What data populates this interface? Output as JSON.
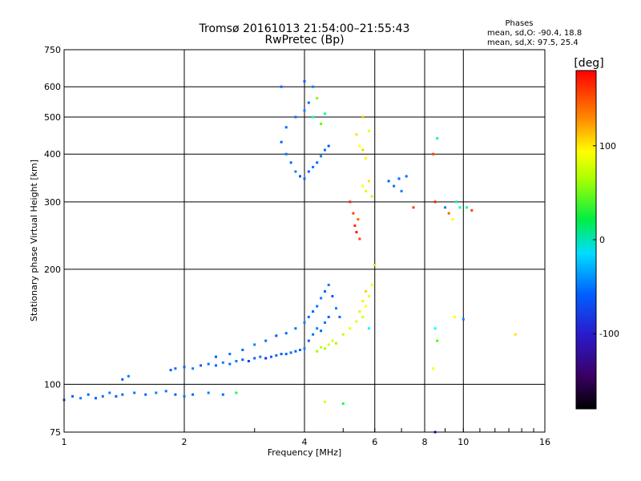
{
  "chart_data": {
    "type": "scatter",
    "title": "Tromsø 20161013 21:54:00–21:55:43",
    "subtitle": "RwPretec (Bp)",
    "xlabel": "Frequency [MHz]",
    "ylabel": "Stationary phase Virtual Height [km]",
    "xscale": "log2",
    "yscale": "log",
    "xlim": [
      1,
      16
    ],
    "ylim": [
      75,
      750
    ],
    "xticks": [
      1,
      2,
      4,
      6,
      8,
      10,
      16
    ],
    "yticks": [
      75,
      100,
      200,
      300,
      400,
      500,
      600,
      750
    ],
    "grid": true,
    "stats": {
      "heading": "Phases",
      "o_line": "mean, sd,O: -90.4, 18.8",
      "x_line": "mean, sd,X:  97.5, 25.4"
    },
    "colorbar": {
      "label": "[deg]",
      "range": [
        -180,
        180
      ],
      "ticks": [
        100,
        0,
        -100
      ],
      "colormap": "rainbow"
    },
    "series": [
      {
        "points": [
          [
            1.0,
            91,
            -105
          ],
          [
            1.05,
            93,
            -110
          ],
          [
            1.1,
            92,
            -100
          ],
          [
            1.15,
            94,
            -108
          ],
          [
            1.2,
            92,
            -112
          ],
          [
            1.25,
            93,
            -104
          ],
          [
            1.3,
            95,
            -100
          ],
          [
            1.35,
            93,
            -110
          ],
          [
            1.4,
            94,
            -106
          ],
          [
            1.5,
            95,
            -102
          ],
          [
            1.6,
            94,
            -108
          ],
          [
            1.7,
            95,
            -100
          ],
          [
            1.8,
            96,
            -104
          ],
          [
            1.9,
            94,
            -110
          ],
          [
            2.0,
            93,
            -102
          ],
          [
            2.1,
            94,
            -108
          ],
          [
            2.3,
            95,
            -100
          ],
          [
            2.5,
            94,
            -106
          ],
          [
            2.7,
            95,
            -10
          ],
          [
            1.45,
            105,
            -100
          ],
          [
            1.4,
            103,
            -110
          ],
          [
            1.85,
            109,
            -110
          ],
          [
            1.9,
            110,
            -105
          ],
          [
            2.0,
            111,
            -108
          ],
          [
            2.1,
            110,
            -100
          ],
          [
            2.2,
            112,
            -112
          ],
          [
            2.3,
            113,
            -104
          ],
          [
            2.4,
            112,
            -108
          ],
          [
            2.5,
            114,
            -100
          ],
          [
            2.6,
            113,
            -106
          ],
          [
            2.7,
            115,
            -102
          ],
          [
            2.8,
            116,
            -110
          ],
          [
            2.9,
            115,
            -120
          ],
          [
            3.0,
            117,
            -110
          ],
          [
            3.1,
            118,
            -104
          ],
          [
            3.2,
            117,
            -125
          ],
          [
            3.3,
            118,
            -110
          ],
          [
            3.4,
            119,
            -106
          ],
          [
            3.5,
            120,
            -112
          ],
          [
            3.6,
            120,
            -108
          ],
          [
            3.7,
            121,
            -104
          ],
          [
            3.8,
            122,
            -110
          ],
          [
            3.9,
            123,
            -106
          ],
          [
            4.0,
            124,
            -100
          ],
          [
            2.4,
            118,
            -110
          ],
          [
            2.6,
            120,
            -104
          ],
          [
            2.8,
            123,
            -108
          ],
          [
            3.0,
            127,
            -100
          ],
          [
            3.2,
            130,
            -106
          ],
          [
            3.4,
            134,
            -112
          ],
          [
            3.6,
            136,
            -108
          ],
          [
            3.8,
            140,
            -104
          ],
          [
            4.0,
            145,
            -100
          ],
          [
            4.1,
            150,
            -106
          ],
          [
            4.2,
            155,
            -110
          ],
          [
            4.3,
            160,
            -104
          ],
          [
            4.4,
            168,
            -100
          ],
          [
            4.5,
            175,
            -108
          ],
          [
            4.6,
            182,
            -104
          ],
          [
            4.7,
            170,
            -112
          ],
          [
            4.8,
            158,
            -100
          ],
          [
            4.9,
            150,
            -106
          ],
          [
            4.1,
            130,
            -110
          ],
          [
            4.2,
            135,
            -104
          ],
          [
            4.3,
            140,
            -100
          ],
          [
            4.4,
            138,
            -108
          ],
          [
            4.5,
            145,
            -104
          ],
          [
            4.6,
            150,
            -110
          ],
          [
            4.3,
            122,
            70
          ],
          [
            4.4,
            125,
            80
          ],
          [
            4.5,
            124,
            75
          ],
          [
            4.6,
            127,
            85
          ],
          [
            4.7,
            130,
            90
          ],
          [
            4.8,
            128,
            70
          ],
          [
            5.0,
            135,
            80
          ],
          [
            5.2,
            140,
            95
          ],
          [
            5.4,
            146,
            90
          ],
          [
            5.6,
            150,
            85
          ],
          [
            5.7,
            160,
            100
          ],
          [
            5.8,
            170,
            95
          ],
          [
            5.5,
            155,
            110
          ],
          [
            5.6,
            165,
            105
          ],
          [
            5.7,
            175,
            115
          ],
          [
            5.8,
            140,
            -60
          ],
          [
            5.9,
            182,
            100
          ],
          [
            3.5,
            430,
            -110
          ],
          [
            3.6,
            400,
            -104
          ],
          [
            3.7,
            380,
            -108
          ],
          [
            3.8,
            360,
            -100
          ],
          [
            3.9,
            350,
            -112
          ],
          [
            4.0,
            345,
            -106
          ],
          [
            4.1,
            360,
            -110
          ],
          [
            4.2,
            370,
            -104
          ],
          [
            4.3,
            380,
            -108
          ],
          [
            4.4,
            395,
            -100
          ],
          [
            4.5,
            410,
            -106
          ],
          [
            4.6,
            420,
            -112
          ],
          [
            3.6,
            470,
            -108
          ],
          [
            3.8,
            500,
            -104
          ],
          [
            4.0,
            520,
            -100
          ],
          [
            4.1,
            545,
            -106
          ],
          [
            4.2,
            500,
            -40
          ],
          [
            4.3,
            560,
            60
          ],
          [
            4.4,
            480,
            50
          ],
          [
            4.5,
            510,
            -30
          ],
          [
            4.0,
            620,
            -110
          ],
          [
            4.2,
            600,
            -100
          ],
          [
            3.5,
            600,
            -106
          ],
          [
            5.2,
            300,
            170
          ],
          [
            5.3,
            280,
            160
          ],
          [
            5.35,
            260,
            165
          ],
          [
            5.4,
            250,
            175
          ],
          [
            5.5,
            240,
            160
          ],
          [
            5.45,
            270,
            150
          ],
          [
            5.4,
            450,
            110
          ],
          [
            5.5,
            420,
            100
          ],
          [
            5.6,
            410,
            115
          ],
          [
            5.7,
            390,
            105
          ],
          [
            5.8,
            460,
            95
          ],
          [
            5.6,
            500,
            120
          ],
          [
            5.6,
            330,
            100
          ],
          [
            5.7,
            320,
            90
          ],
          [
            5.8,
            340,
            110
          ],
          [
            5.9,
            310,
            85
          ],
          [
            6.5,
            340,
            -110
          ],
          [
            6.7,
            330,
            -104
          ],
          [
            6.9,
            345,
            -108
          ],
          [
            7.0,
            320,
            -100
          ],
          [
            7.2,
            350,
            -106
          ],
          [
            8.4,
            400,
            160
          ],
          [
            8.5,
            300,
            170
          ],
          [
            8.6,
            440,
            -20
          ],
          [
            9.0,
            290,
            -100
          ],
          [
            9.2,
            280,
            150
          ],
          [
            9.4,
            270,
            100
          ],
          [
            9.6,
            300,
            -20
          ],
          [
            9.8,
            290,
            -40
          ],
          [
            10.2,
            290,
            -30
          ],
          [
            10.5,
            285,
            160
          ],
          [
            8.5,
            140,
            -60
          ],
          [
            8.6,
            130,
            40
          ],
          [
            8.4,
            110,
            100
          ],
          [
            8.5,
            75,
            -130
          ],
          [
            9.5,
            150,
            100
          ],
          [
            10.0,
            148,
            -100
          ],
          [
            6.0,
            205,
            80
          ],
          [
            7.5,
            290,
            160
          ],
          [
            13.5,
            135,
            110
          ],
          [
            4.5,
            90,
            90
          ],
          [
            5.0,
            89,
            -10
          ]
        ]
      }
    ]
  }
}
